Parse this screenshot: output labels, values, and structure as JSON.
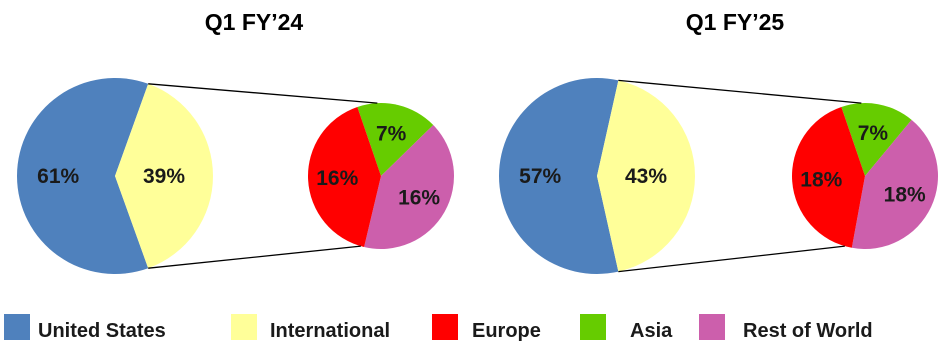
{
  "chart_data": [
    {
      "type": "pie",
      "title": "Q1 FY’24",
      "main": {
        "slices": [
          {
            "name": "United States",
            "value": 61,
            "label": "61%",
            "color": "#4f81bd"
          },
          {
            "name": "International",
            "value": 39,
            "label": "39%",
            "color": "#ffff99"
          }
        ]
      },
      "breakdown": {
        "of": "International",
        "slices": [
          {
            "name": "Asia",
            "value": 7,
            "label": "7%",
            "color": "#66cc00"
          },
          {
            "name": "Rest of World",
            "value": 16,
            "label": "16%",
            "color": "#cc5fac"
          },
          {
            "name": "Europe",
            "value": 16,
            "label": "16%",
            "color": "#ff0000"
          }
        ]
      }
    },
    {
      "type": "pie",
      "title": "Q1 FY’25",
      "main": {
        "slices": [
          {
            "name": "United States",
            "value": 57,
            "label": "57%",
            "color": "#4f81bd"
          },
          {
            "name": "International",
            "value": 43,
            "label": "43%",
            "color": "#ffff99"
          }
        ]
      },
      "breakdown": {
        "of": "International",
        "slices": [
          {
            "name": "Asia",
            "value": 7,
            "label": "7%",
            "color": "#66cc00"
          },
          {
            "name": "Rest of World",
            "value": 18,
            "label": "18%",
            "color": "#cc5fac"
          },
          {
            "name": "Europe",
            "value": 18,
            "label": "18%",
            "color": "#ff0000"
          }
        ]
      }
    }
  ],
  "legend": {
    "placement": "bottom",
    "items": [
      {
        "label": "United States",
        "color": "#4f81bd"
      },
      {
        "label": "International",
        "color": "#ffff99"
      },
      {
        "label": "Europe",
        "color": "#ff0000"
      },
      {
        "label": "Asia",
        "color": "#66cc00"
      },
      {
        "label": "Rest of World",
        "color": "#cc5fac"
      }
    ]
  }
}
